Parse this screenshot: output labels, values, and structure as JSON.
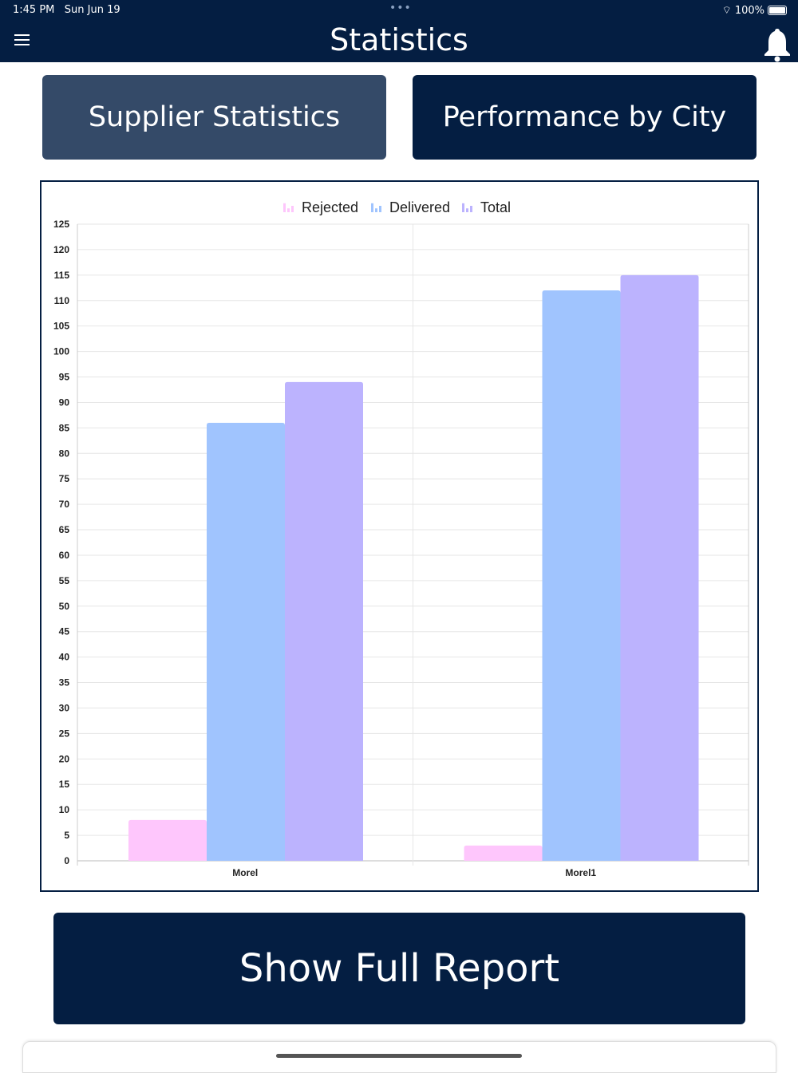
{
  "status": {
    "time": "1:45 PM",
    "date": "Sun Jun 19",
    "battery": "100%"
  },
  "header": {
    "title": "Statistics"
  },
  "tabs": {
    "supplier": "Supplier Statistics",
    "city": "Performance by City"
  },
  "report_button": "Show Full Report",
  "colors": {
    "navy": "#041e42",
    "tab_active": "#344a68",
    "rejected": "#fec6fc",
    "delivered": "#a0c4fe",
    "total": "#bcb3fe"
  },
  "chart_data": {
    "type": "bar",
    "categories": [
      "Morel",
      "Morel1"
    ],
    "series": [
      {
        "name": "Rejected",
        "values": [
          8,
          3
        ],
        "color": "#fec6fc"
      },
      {
        "name": "Delivered",
        "values": [
          86,
          112
        ],
        "color": "#a0c4fe"
      },
      {
        "name": "Total",
        "values": [
          94,
          115
        ],
        "color": "#bcb3fe"
      }
    ],
    "ylim": [
      0,
      125
    ],
    "ytick_step": 5,
    "legend": "top-center",
    "grid": true,
    "xlabel": "",
    "ylabel": ""
  }
}
